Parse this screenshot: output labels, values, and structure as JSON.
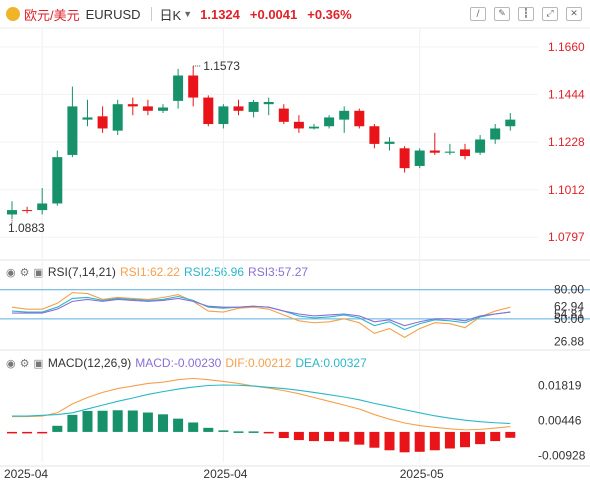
{
  "header": {
    "instrument_name": "欧元/美元",
    "symbol": "EURUSD",
    "period": "日K",
    "price": "1.1324",
    "change": "+0.0041",
    "change_pct": "+0.36%",
    "tool_icons": [
      "line-tool-icon",
      "brush-tool-icon",
      "candlestick-icon",
      "expand-icon",
      "close-icon"
    ]
  },
  "panels": {
    "rsi": {
      "label": "RSI(7,14,21)",
      "rsi1": "RSI1:62.22",
      "rsi2": "RSI2:56.96",
      "rsi3": "RSI3:57.27"
    },
    "macd": {
      "label": "MACD(12,26,9)",
      "macd": "MACD:-0.00230",
      "dif": "DIF:0.00212",
      "dea": "DEA:0.00327"
    }
  },
  "colors": {
    "up": "#17916a",
    "down": "#e8141a",
    "rsi1": "#f5a04b",
    "rsi2": "#2ab7ca",
    "rsi3": "#8a6fd6",
    "dif": "#f5a04b",
    "dea": "#2ab7ca",
    "macd_label": "#8a6fd6",
    "threshold": "#5aaee0",
    "header_red": "#e0222a"
  },
  "chart_data": [
    {
      "type": "candlestick",
      "y_ticks": [
        "1.1660",
        "1.1444",
        "1.1228",
        "1.1012",
        "1.0797"
      ],
      "ylim": [
        1.073,
        1.17
      ],
      "annotations": {
        "high": "1.1573",
        "low": "1.0883"
      },
      "x_tick_labels": [
        "2025-04",
        "2025-04",
        "2025-05"
      ],
      "candles": [
        {
          "o": 1.09,
          "h": 1.096,
          "l": 1.0883,
          "c": 1.092
        },
        {
          "o": 1.092,
          "h": 1.0935,
          "l": 1.0905,
          "c": 1.0918
        },
        {
          "o": 1.092,
          "h": 1.102,
          "l": 1.09,
          "c": 1.095
        },
        {
          "o": 1.095,
          "h": 1.119,
          "l": 1.094,
          "c": 1.116
        },
        {
          "o": 1.117,
          "h": 1.148,
          "l": 1.116,
          "c": 1.139
        },
        {
          "o": 1.133,
          "h": 1.142,
          "l": 1.13,
          "c": 1.134
        },
        {
          "o": 1.1345,
          "h": 1.139,
          "l": 1.127,
          "c": 1.129
        },
        {
          "o": 1.128,
          "h": 1.142,
          "l": 1.126,
          "c": 1.14
        },
        {
          "o": 1.14,
          "h": 1.143,
          "l": 1.135,
          "c": 1.139
        },
        {
          "o": 1.139,
          "h": 1.142,
          "l": 1.135,
          "c": 1.137
        },
        {
          "o": 1.137,
          "h": 1.14,
          "l": 1.136,
          "c": 1.1385
        },
        {
          "o": 1.1415,
          "h": 1.156,
          "l": 1.138,
          "c": 1.153
        },
        {
          "o": 1.153,
          "h": 1.1573,
          "l": 1.139,
          "c": 1.143
        },
        {
          "o": 1.143,
          "h": 1.144,
          "l": 1.13,
          "c": 1.131
        },
        {
          "o": 1.131,
          "h": 1.14,
          "l": 1.129,
          "c": 1.139
        },
        {
          "o": 1.139,
          "h": 1.142,
          "l": 1.135,
          "c": 1.137
        },
        {
          "o": 1.1365,
          "h": 1.142,
          "l": 1.134,
          "c": 1.141
        },
        {
          "o": 1.14,
          "h": 1.143,
          "l": 1.135,
          "c": 1.141
        },
        {
          "o": 1.138,
          "h": 1.14,
          "l": 1.131,
          "c": 1.132
        },
        {
          "o": 1.132,
          "h": 1.135,
          "l": 1.127,
          "c": 1.129
        },
        {
          "o": 1.129,
          "h": 1.131,
          "l": 1.1285,
          "c": 1.1298
        },
        {
          "o": 1.13,
          "h": 1.135,
          "l": 1.129,
          "c": 1.134
        },
        {
          "o": 1.133,
          "h": 1.139,
          "l": 1.127,
          "c": 1.137
        },
        {
          "o": 1.137,
          "h": 1.138,
          "l": 1.129,
          "c": 1.13
        },
        {
          "o": 1.13,
          "h": 1.131,
          "l": 1.12,
          "c": 1.122
        },
        {
          "o": 1.122,
          "h": 1.125,
          "l": 1.119,
          "c": 1.123
        },
        {
          "o": 1.12,
          "h": 1.121,
          "l": 1.109,
          "c": 1.111
        },
        {
          "o": 1.112,
          "h": 1.12,
          "l": 1.111,
          "c": 1.119
        },
        {
          "o": 1.119,
          "h": 1.127,
          "l": 1.117,
          "c": 1.118
        },
        {
          "o": 1.118,
          "h": 1.122,
          "l": 1.117,
          "c": 1.1185
        },
        {
          "o": 1.1195,
          "h": 1.122,
          "l": 1.115,
          "c": 1.1165
        },
        {
          "o": 1.118,
          "h": 1.126,
          "l": 1.117,
          "c": 1.124
        },
        {
          "o": 1.124,
          "h": 1.131,
          "l": 1.122,
          "c": 1.129
        },
        {
          "o": 1.13,
          "h": 1.136,
          "l": 1.128,
          "c": 1.133
        }
      ]
    },
    {
      "type": "line",
      "name": "RSI",
      "ylim": [
        20,
        90
      ],
      "y_ticks": [
        "80.00",
        "62.94",
        "54.81",
        "50.00",
        "26.88"
      ],
      "thresholds": [
        80,
        50
      ],
      "series": [
        {
          "name": "RSI1",
          "values": [
            62,
            60,
            60,
            66,
            77,
            76,
            70,
            72,
            71,
            70,
            72,
            75,
            68,
            58,
            57,
            61,
            62,
            60,
            54,
            48,
            46,
            47,
            50,
            46,
            35,
            40,
            31,
            40,
            46,
            45,
            41,
            52,
            58,
            62
          ]
        },
        {
          "name": "RSI2",
          "values": [
            58,
            57,
            57,
            62,
            71,
            72,
            69,
            71,
            70,
            69,
            70,
            73,
            69,
            62,
            61,
            62,
            63,
            62,
            58,
            53,
            51,
            52,
            54,
            51,
            43,
            47,
            39,
            45,
            49,
            48,
            46,
            52,
            55,
            57
          ]
        },
        {
          "name": "RSI3",
          "values": [
            56,
            56,
            56,
            60,
            68,
            70,
            68,
            70,
            69,
            68,
            69,
            71,
            68,
            63,
            62,
            62,
            63,
            62,
            58,
            55,
            53,
            54,
            55,
            53,
            47,
            49,
            43,
            47,
            50,
            50,
            48,
            53,
            55,
            57
          ]
        }
      ]
    },
    {
      "type": "bar",
      "name": "MACD",
      "ylim": [
        -0.0118,
        0.0235
      ],
      "y_ticks": [
        "0.01819",
        "0.00446",
        "-0.00928"
      ],
      "series": [
        {
          "name": "MACD",
          "values": [
            -0.0005,
            -0.0005,
            -0.0004,
            0.0024,
            0.0067,
            0.0082,
            0.0083,
            0.0085,
            0.0084,
            0.0076,
            0.0069,
            0.0052,
            0.0037,
            0.0016,
            0.0006,
            0.0002,
            0.0002,
            -0.0002,
            -0.0024,
            -0.0032,
            -0.0036,
            -0.0036,
            -0.0038,
            -0.005,
            -0.0062,
            -0.0072,
            -0.008,
            -0.0078,
            -0.0072,
            -0.0065,
            -0.006,
            -0.0048,
            -0.0036,
            -0.0023
          ]
        },
        {
          "name": "DIF",
          "values": [
            0.006,
            0.006,
            0.0062,
            0.0075,
            0.011,
            0.0135,
            0.0155,
            0.017,
            0.018,
            0.019,
            0.0195,
            0.0205,
            0.021,
            0.0205,
            0.0198,
            0.019,
            0.018,
            0.0172,
            0.0162,
            0.015,
            0.0135,
            0.012,
            0.0105,
            0.009,
            0.0068,
            0.005,
            0.0035,
            0.0025,
            0.0018,
            0.0012,
            0.0008,
            0.001,
            0.0015,
            0.0021
          ]
        },
        {
          "name": "DEA",
          "values": [
            0.0062,
            0.0062,
            0.0065,
            0.0068,
            0.0075,
            0.009,
            0.0105,
            0.012,
            0.0133,
            0.0147,
            0.0158,
            0.0168,
            0.0176,
            0.0182,
            0.0184,
            0.0183,
            0.018,
            0.0175,
            0.017,
            0.0163,
            0.0155,
            0.0146,
            0.0137,
            0.0126,
            0.0112,
            0.01,
            0.0087,
            0.0075,
            0.0063,
            0.0054,
            0.0046,
            0.004,
            0.0036,
            0.0033
          ]
        }
      ]
    }
  ]
}
